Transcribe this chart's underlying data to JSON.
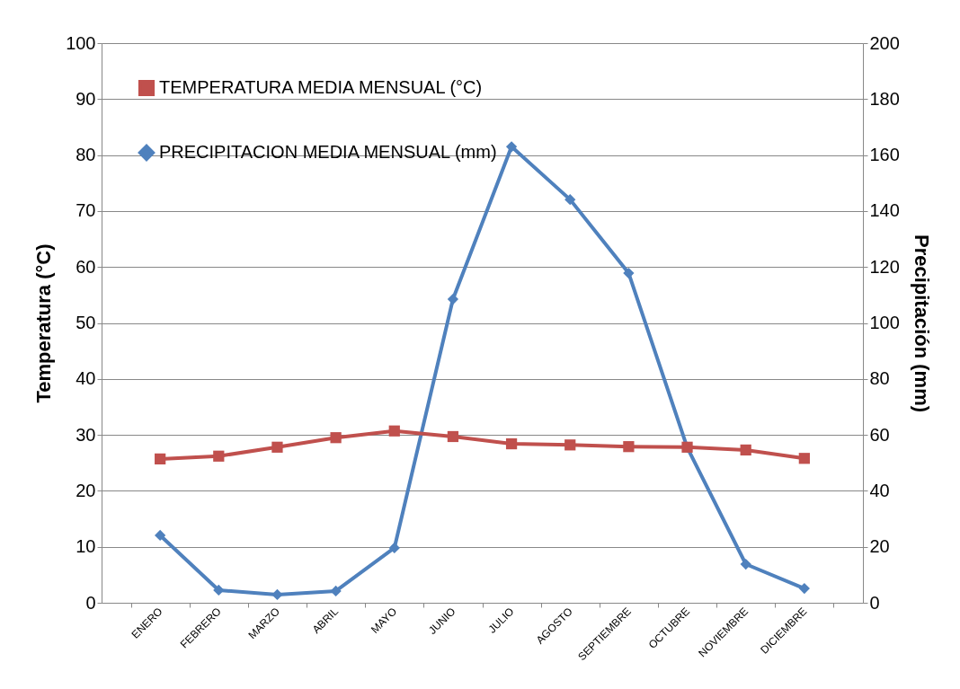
{
  "chart_data": {
    "type": "line",
    "categories": [
      "ENERO",
      "FEBRERO",
      "MARZO",
      "ABRIL",
      "MAYO",
      "JUNIO",
      "JULIO",
      "AGOSTO",
      "SEPTIEMBRE",
      "OCTUBRE",
      "NOVIEMBRE",
      "DICIEMBRE"
    ],
    "ylabel": "Temperatura (°C)",
    "y2label": "Precipitación (mm)",
    "ylim": [
      0,
      100
    ],
    "yticks": [
      0,
      10,
      20,
      30,
      40,
      50,
      60,
      70,
      80,
      90,
      100
    ],
    "y2lim": [
      0,
      200
    ],
    "y2ticks": [
      0,
      20,
      40,
      60,
      80,
      100,
      120,
      140,
      160,
      180,
      200
    ],
    "grid": "y",
    "legend": "top left",
    "series": [
      {
        "name": "TEMPERATURA MEDIA MENSUAL (°C)",
        "color": "#c0504d",
        "marker": "square",
        "values": [
          25.7,
          26.2,
          27.8,
          29.5,
          30.7,
          29.7,
          28.4,
          28.2,
          27.9,
          27.8,
          27.3,
          25.8
        ]
      },
      {
        "name": "PRECIPITACION MEDIA MENSUAL (mm)",
        "color": "#4f81bd",
        "marker": "diamond",
        "axis": "y2",
        "values": [
          24.1,
          4.5,
          2.9,
          4.2,
          19.6,
          108.5,
          163,
          144.1,
          117.8,
          55.5,
          13.8,
          5.1
        ]
      }
    ]
  }
}
